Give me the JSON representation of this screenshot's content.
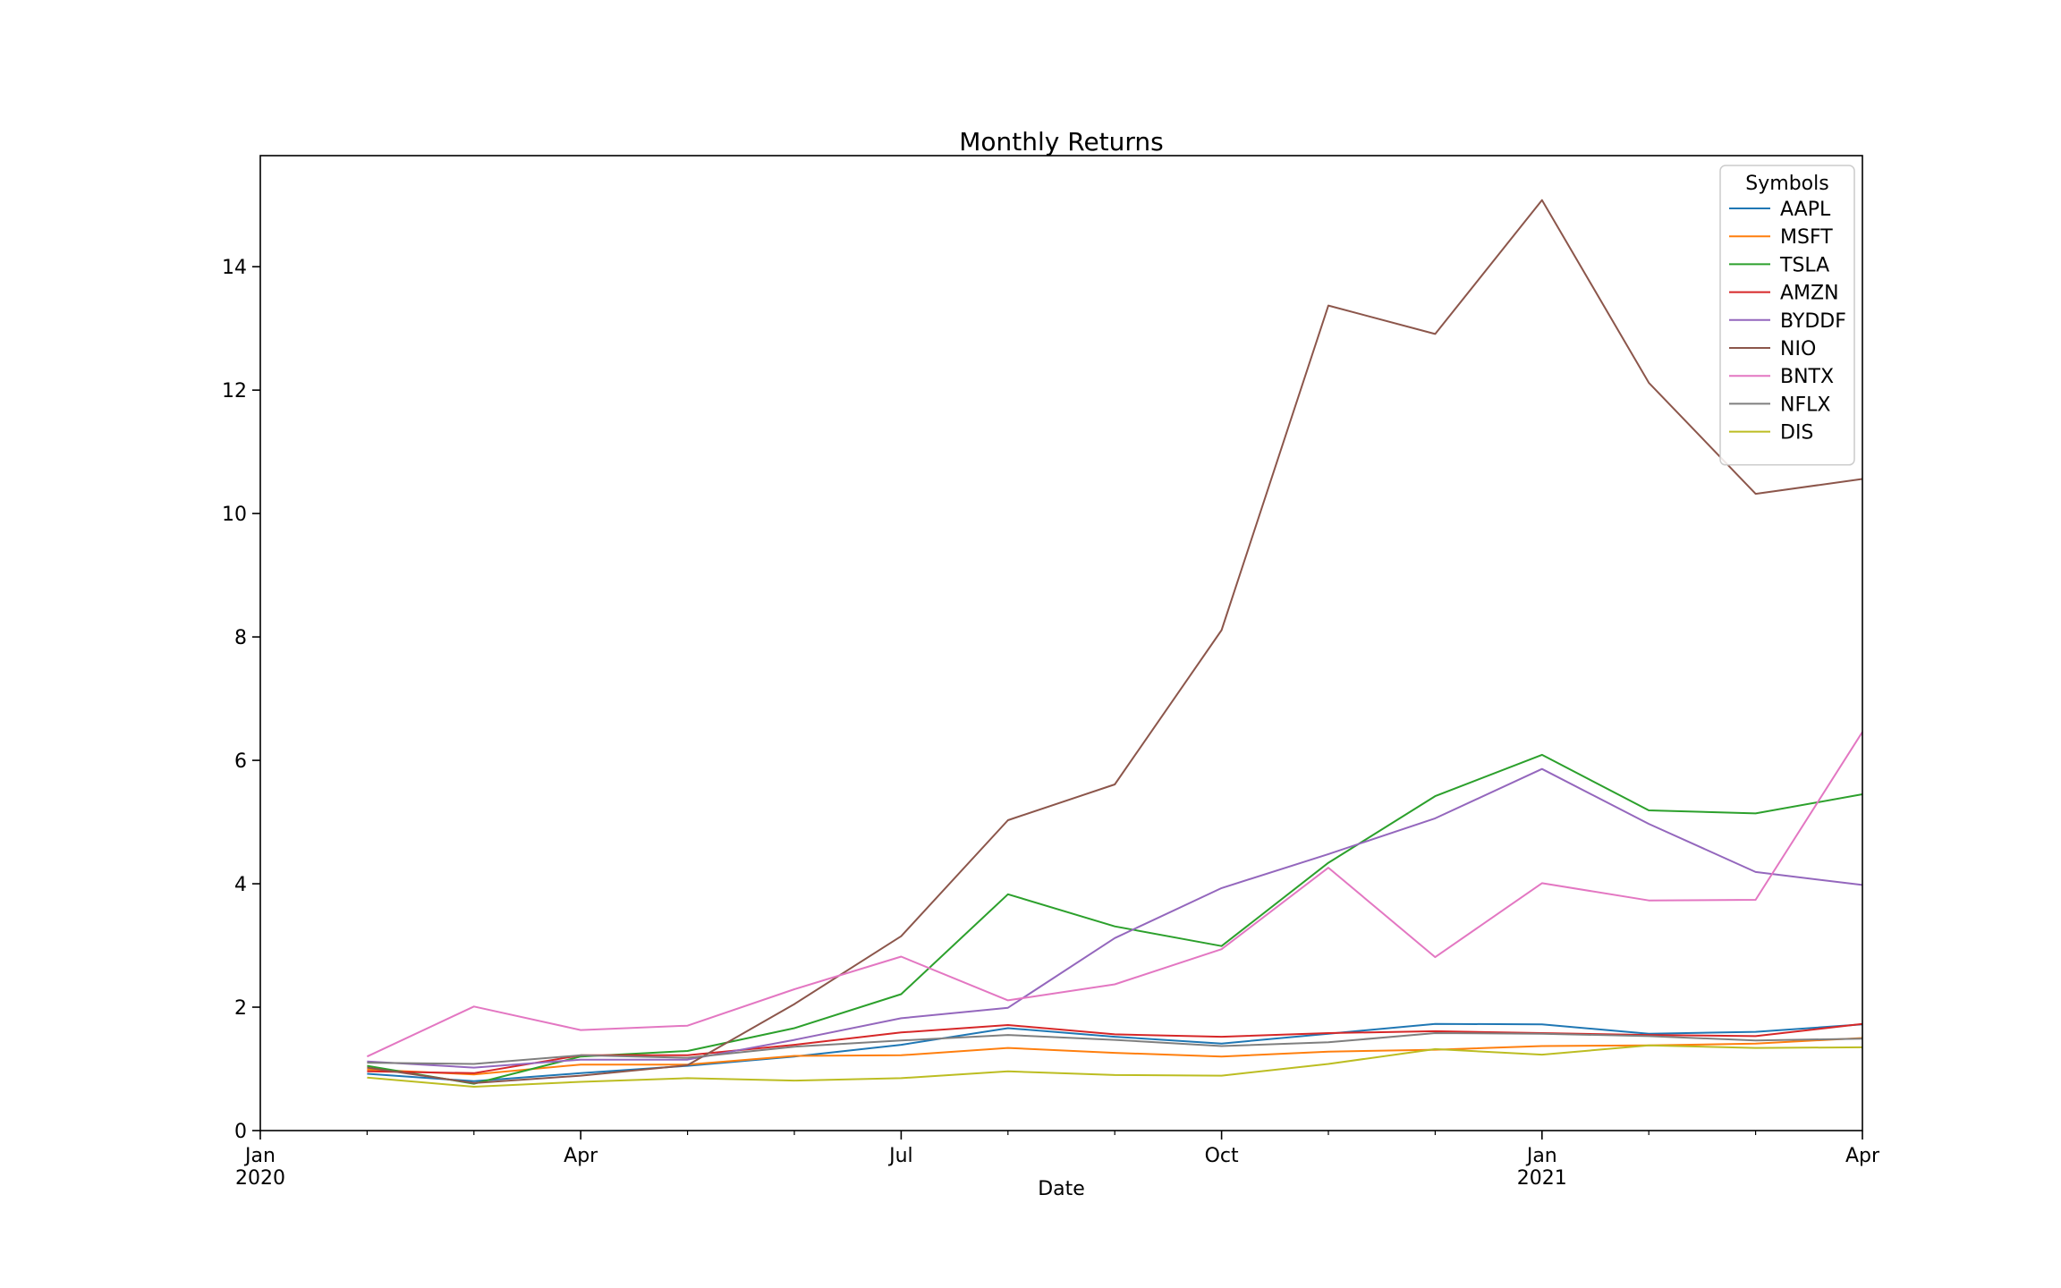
{
  "chart_data": {
    "type": "line",
    "title": "Monthly Returns",
    "xlabel": "Date",
    "ylabel": "",
    "x": [
      "2020-02",
      "2020-03",
      "2020-04",
      "2020-05",
      "2020-06",
      "2020-07",
      "2020-08",
      "2020-09",
      "2020-10",
      "2020-11",
      "2020-12",
      "2021-01",
      "2021-02",
      "2021-03",
      "2021-04"
    ],
    "x_axis_range": [
      "2020-01",
      "2021-04"
    ],
    "ylim": [
      0,
      15.8
    ],
    "y_ticks": [
      0,
      2,
      4,
      6,
      8,
      10,
      12,
      14
    ],
    "x_ticks": [
      {
        "month": "2020-01",
        "label": "Jan",
        "year": "2020",
        "major": true
      },
      {
        "month": "2020-02",
        "label": "",
        "year": "",
        "major": false
      },
      {
        "month": "2020-03",
        "label": "",
        "year": "",
        "major": false
      },
      {
        "month": "2020-04",
        "label": "Apr",
        "year": "",
        "major": true
      },
      {
        "month": "2020-05",
        "label": "",
        "year": "",
        "major": false
      },
      {
        "month": "2020-06",
        "label": "",
        "year": "",
        "major": false
      },
      {
        "month": "2020-07",
        "label": "Jul",
        "year": "",
        "major": true
      },
      {
        "month": "2020-08",
        "label": "",
        "year": "",
        "major": false
      },
      {
        "month": "2020-09",
        "label": "",
        "year": "",
        "major": false
      },
      {
        "month": "2020-10",
        "label": "Oct",
        "year": "",
        "major": true
      },
      {
        "month": "2020-11",
        "label": "",
        "year": "",
        "major": false
      },
      {
        "month": "2020-12",
        "label": "",
        "year": "",
        "major": false
      },
      {
        "month": "2021-01",
        "label": "Jan",
        "year": "2021",
        "major": true
      },
      {
        "month": "2021-02",
        "label": "",
        "year": "",
        "major": false
      },
      {
        "month": "2021-03",
        "label": "",
        "year": "",
        "major": false
      },
      {
        "month": "2021-04",
        "label": "Apr",
        "year": "",
        "major": true
      }
    ],
    "grid": false,
    "legend": {
      "title": "Symbols",
      "placement": "top-right"
    },
    "series": [
      {
        "name": "AAPL",
        "color": "#1f77b4",
        "values": [
          0.92,
          0.8,
          0.93,
          1.05,
          1.2,
          1.39,
          1.66,
          1.52,
          1.41,
          1.57,
          1.73,
          1.72,
          1.57,
          1.6,
          1.72
        ]
      },
      {
        "name": "MSFT",
        "color": "#ff7f0e",
        "values": [
          0.99,
          0.91,
          1.07,
          1.07,
          1.21,
          1.22,
          1.34,
          1.26,
          1.2,
          1.28,
          1.31,
          1.37,
          1.38,
          1.41,
          1.5
        ]
      },
      {
        "name": "TSLA",
        "color": "#2ca02c",
        "values": [
          1.05,
          0.76,
          1.2,
          1.29,
          1.66,
          2.21,
          3.83,
          3.31,
          2.99,
          4.34,
          5.42,
          6.09,
          5.19,
          5.14,
          5.45
        ]
      },
      {
        "name": "AMZN",
        "color": "#d62728",
        "values": [
          0.96,
          0.93,
          1.22,
          1.22,
          1.39,
          1.59,
          1.71,
          1.56,
          1.52,
          1.58,
          1.61,
          1.58,
          1.55,
          1.53,
          1.73
        ]
      },
      {
        "name": "BYDDF",
        "color": "#9467bd",
        "values": [
          1.12,
          1.02,
          1.15,
          1.15,
          1.47,
          1.82,
          1.99,
          3.12,
          3.93,
          4.48,
          5.06,
          5.86,
          4.97,
          4.19,
          3.98
        ]
      },
      {
        "name": "NIO",
        "color": "#8c564b",
        "values": [
          1.02,
          0.77,
          0.89,
          1.06,
          2.05,
          3.15,
          5.03,
          5.61,
          8.11,
          13.37,
          12.91,
          15.08,
          12.12,
          10.32,
          10.56
        ]
      },
      {
        "name": "BNTX",
        "color": "#e377c2",
        "values": [
          1.2,
          2.01,
          1.63,
          1.7,
          2.29,
          2.82,
          2.11,
          2.37,
          2.94,
          4.26,
          2.81,
          4.01,
          3.73,
          3.74,
          6.46
        ]
      },
      {
        "name": "NFLX",
        "color": "#7f7f7f",
        "values": [
          1.1,
          1.08,
          1.22,
          1.18,
          1.36,
          1.46,
          1.55,
          1.47,
          1.37,
          1.43,
          1.58,
          1.57,
          1.53,
          1.46,
          1.49
        ]
      },
      {
        "name": "DIS",
        "color": "#bcbd22",
        "values": [
          0.86,
          0.71,
          0.79,
          0.85,
          0.81,
          0.85,
          0.96,
          0.9,
          0.89,
          1.08,
          1.32,
          1.23,
          1.38,
          1.34,
          1.35
        ]
      }
    ]
  }
}
